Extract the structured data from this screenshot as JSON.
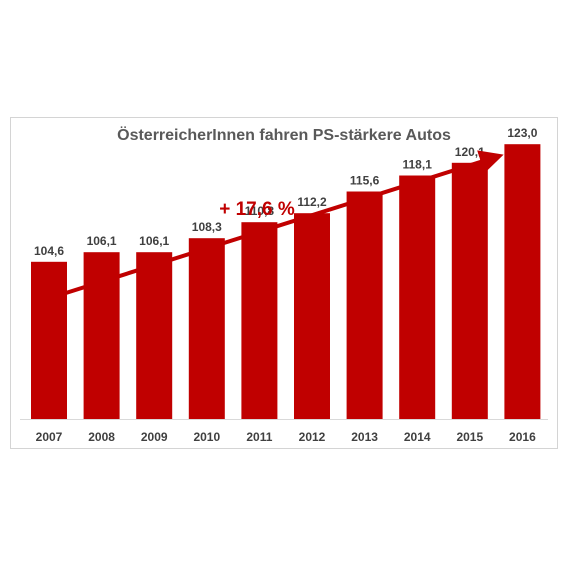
{
  "chart_data": {
    "type": "bar",
    "title": "ÖsterreicherInnen fahren PS-stärkere Autos",
    "categories": [
      "2007",
      "2008",
      "2009",
      "2010",
      "2011",
      "2012",
      "2013",
      "2014",
      "2015",
      "2016"
    ],
    "values": [
      104.6,
      106.1,
      106.1,
      108.3,
      110.8,
      112.2,
      115.6,
      118.1,
      120.1,
      123.0
    ],
    "value_labels": [
      "104,6",
      "106,1",
      "106,1",
      "108,3",
      "110,8",
      "112,2",
      "115,6",
      "118,1",
      "120,1",
      "123,0"
    ],
    "annotation": "+ 17,6 %",
    "xlabel": "",
    "ylabel": "",
    "ylim": [
      80,
      125
    ],
    "grid": false,
    "legend": "none",
    "colors": {
      "bar": "#c00000",
      "arrow": "#c00000",
      "annotation": "#c00000",
      "text": "#404040",
      "title": "#595959"
    }
  }
}
